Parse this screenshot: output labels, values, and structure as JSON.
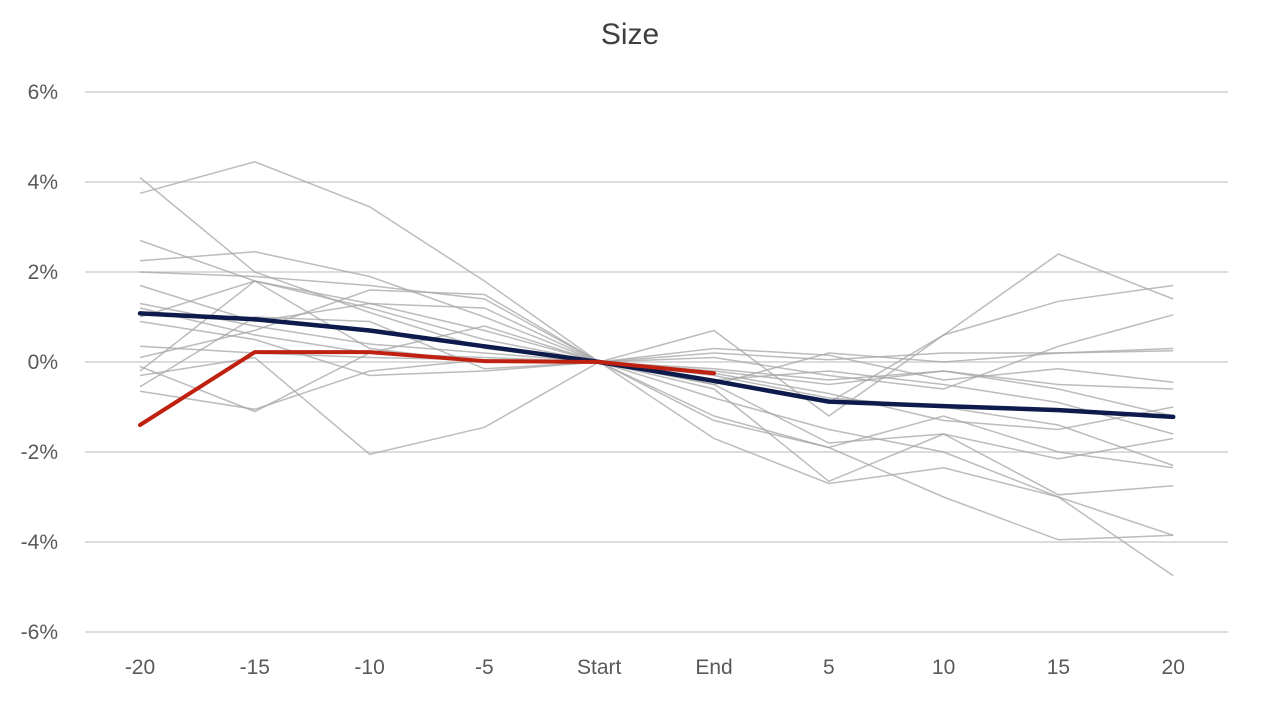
{
  "chart_data": {
    "type": "line",
    "title": "Size",
    "xlabel": "",
    "ylabel": "",
    "categories": [
      "-20",
      "-15",
      "-10",
      "-5",
      "Start",
      "End",
      "5",
      "10",
      "15",
      "20"
    ],
    "ylim": [
      -6,
      6
    ],
    "y_ticks": [
      -6,
      -4,
      -2,
      0,
      2,
      4,
      6
    ],
    "y_tick_labels": [
      "-6%",
      "-4%",
      "-2%",
      "0%",
      "2%",
      "4%",
      "6%"
    ],
    "grid": "horizontal",
    "legend": "none",
    "colors": {
      "background_series": "#a6a6a6",
      "average_series": "#0d1b4c",
      "current_series": "#c0200f",
      "grid": "#d0d0d0",
      "text": "#595959"
    },
    "series": [
      {
        "role": "background",
        "values": [
          4.1,
          2.0,
          1.1,
          0.3,
          0.0,
          -0.8,
          -1.5,
          -2.0,
          -3.0,
          -3.85
        ]
      },
      {
        "role": "background",
        "values": [
          3.75,
          4.45,
          3.45,
          1.8,
          0.0,
          -1.2,
          -1.9,
          -3.0,
          -3.95,
          -3.85
        ]
      },
      {
        "role": "background",
        "values": [
          2.7,
          1.8,
          1.2,
          0.5,
          0.0,
          -1.7,
          -2.7,
          -2.35,
          -3.0,
          -4.75
        ]
      },
      {
        "role": "background",
        "values": [
          2.25,
          2.45,
          1.9,
          1.0,
          0.0,
          -0.3,
          -0.8,
          -1.0,
          -1.4,
          -2.3
        ]
      },
      {
        "role": "background",
        "values": [
          2.0,
          1.9,
          1.7,
          1.4,
          0.0,
          -0.6,
          -2.65,
          -1.6,
          -2.95,
          -2.75
        ]
      },
      {
        "role": "background",
        "values": [
          1.7,
          0.9,
          1.3,
          1.2,
          0.0,
          -0.2,
          -0.5,
          -0.2,
          -0.6,
          -1.2
        ]
      },
      {
        "role": "background",
        "values": [
          1.3,
          0.8,
          0.4,
          0.2,
          0.0,
          0.7,
          -1.2,
          0.6,
          2.4,
          1.4
        ]
      },
      {
        "role": "background",
        "values": [
          1.2,
          0.6,
          0.2,
          0.1,
          0.0,
          -0.4,
          -0.9,
          0.6,
          1.35,
          1.7
        ]
      },
      {
        "role": "background",
        "values": [
          1.0,
          1.8,
          1.3,
          0.7,
          0.0,
          -0.5,
          0.2,
          0.0,
          0.2,
          0.3
        ]
      },
      {
        "role": "background",
        "values": [
          0.35,
          0.2,
          0.1,
          0.05,
          0.0,
          0.1,
          -0.3,
          -0.6,
          0.35,
          1.05
        ]
      },
      {
        "role": "background",
        "values": [
          0.1,
          0.7,
          1.6,
          1.5,
          0.0,
          -0.4,
          -0.2,
          -0.5,
          -0.9,
          -1.6
        ]
      },
      {
        "role": "background",
        "values": [
          -0.1,
          -1.1,
          0.2,
          0.8,
          0.0,
          0.2,
          0.05,
          0.2,
          0.2,
          0.25
        ]
      },
      {
        "role": "background",
        "values": [
          -0.2,
          1.8,
          0.3,
          0.0,
          0.0,
          -0.15,
          -0.4,
          -0.2,
          -0.5,
          -0.6
        ]
      },
      {
        "role": "background",
        "values": [
          -0.3,
          0.1,
          -2.05,
          -1.45,
          0.0,
          -0.5,
          -1.8,
          -1.6,
          -2.15,
          -1.7
        ]
      },
      {
        "role": "background",
        "values": [
          -0.55,
          1.0,
          0.9,
          -0.15,
          0.0,
          0.3,
          0.15,
          -0.4,
          -0.15,
          -0.45
        ]
      },
      {
        "role": "background",
        "values": [
          -0.65,
          -1.05,
          -0.2,
          0.05,
          0.0,
          -1.3,
          -1.9,
          -1.2,
          -2.0,
          -2.35
        ]
      },
      {
        "role": "background",
        "values": [
          0.9,
          0.5,
          -0.3,
          -0.2,
          0.0,
          -0.25,
          -0.7,
          -1.3,
          -1.5,
          -1.0
        ]
      },
      {
        "role": "average",
        "values": [
          1.08,
          0.95,
          0.7,
          0.35,
          0.0,
          -0.42,
          -0.88,
          -0.98,
          -1.07,
          -1.22
        ]
      },
      {
        "role": "current",
        "values": [
          -1.4,
          0.22,
          0.22,
          0.02,
          0.0,
          -0.25,
          null,
          null,
          null,
          null
        ]
      }
    ]
  }
}
